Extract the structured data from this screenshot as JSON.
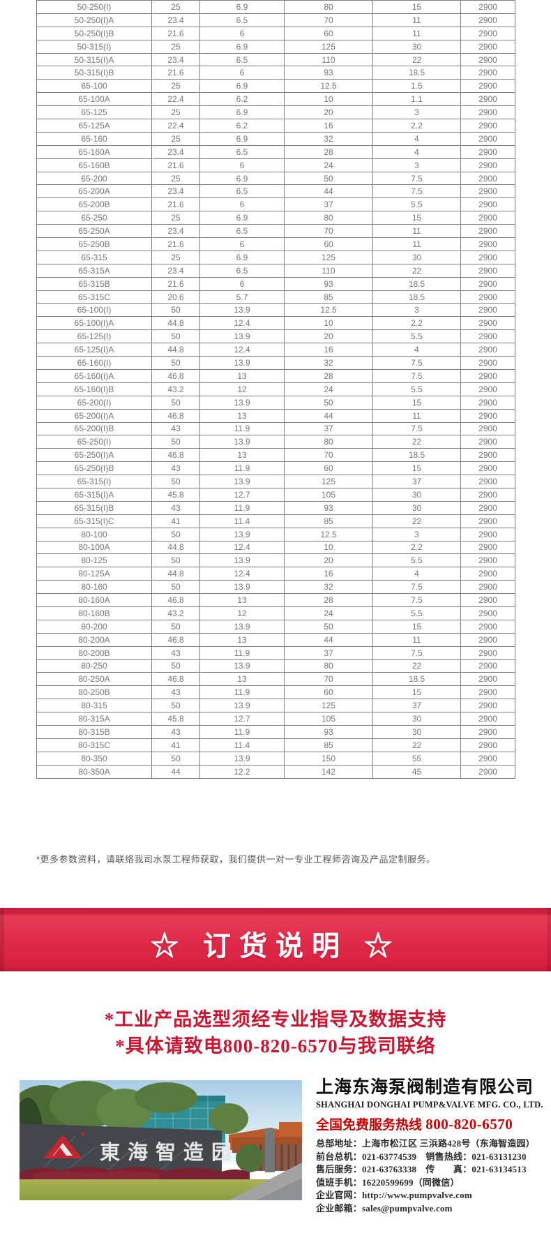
{
  "colors": {
    "banner_red": "#e12b4a",
    "notice_red": "#cc1430",
    "hotline_red": "#cc0000",
    "table_text_gray": "#777777",
    "table_border_gray": "#7f7f7f",
    "sign_wall_gray": "#43474b",
    "logo_red": "#c2272f"
  },
  "table": {
    "rows": [
      [
        "50-250(I)",
        "25",
        "6.9",
        "80",
        "15",
        "2900"
      ],
      [
        "50-250(I)A",
        "23.4",
        "6.5",
        "70",
        "11",
        "2900"
      ],
      [
        "50-250(I)B",
        "21.6",
        "6",
        "60",
        "11",
        "2900"
      ],
      [
        "50-315(I)",
        "25",
        "6.9",
        "125",
        "30",
        "2900"
      ],
      [
        "50-315(I)A",
        "23.4",
        "6.5",
        "110",
        "22",
        "2900"
      ],
      [
        "50-315(I)B",
        "21.6",
        "6",
        "93",
        "18.5",
        "2900"
      ],
      [
        "65-100",
        "25",
        "6.9",
        "12.5",
        "1.5",
        "2900"
      ],
      [
        "65-100A",
        "22.4",
        "6.2",
        "10",
        "1.1",
        "2900"
      ],
      [
        "65-125",
        "25",
        "6.9",
        "20",
        "3",
        "2900"
      ],
      [
        "65-125A",
        "22.4",
        "6.2",
        "16",
        "2.2",
        "2900"
      ],
      [
        "65-160",
        "25",
        "6.9",
        "32",
        "4",
        "2900"
      ],
      [
        "65-160A",
        "23.4",
        "6.5",
        "28",
        "4",
        "2900"
      ],
      [
        "65-160B",
        "21.6",
        "6",
        "24",
        "3",
        "2900"
      ],
      [
        "65-200",
        "25",
        "6.9",
        "50",
        "7.5",
        "2900"
      ],
      [
        "65-200A",
        "23.4",
        "6.5",
        "44",
        "7.5",
        "2900"
      ],
      [
        "65-200B",
        "21.6",
        "6",
        "37",
        "5.5",
        "2900"
      ],
      [
        "65-250",
        "25",
        "6.9",
        "80",
        "15",
        "2900"
      ],
      [
        "65-250A",
        "23.4",
        "6.5",
        "70",
        "11",
        "2900"
      ],
      [
        "65-250B",
        "21.6",
        "6",
        "60",
        "11",
        "2900"
      ],
      [
        "65-315",
        "25",
        "6.9",
        "125",
        "30",
        "2900"
      ],
      [
        "65-315A",
        "23.4",
        "6.5",
        "110",
        "22",
        "2900"
      ],
      [
        "65-315B",
        "21.6",
        "6",
        "93",
        "18.5",
        "2900"
      ],
      [
        "65-315C",
        "20.6",
        "5.7",
        "85",
        "18.5",
        "2900"
      ],
      [
        "65-100(I)",
        "50",
        "13.9",
        "12.5",
        "3",
        "2900"
      ],
      [
        "65-100(I)A",
        "44.8",
        "12.4",
        "10",
        "2.2",
        "2900"
      ],
      [
        "65-125(I)",
        "50",
        "13.9",
        "20",
        "5.5",
        "2900"
      ],
      [
        "65-125(I)A",
        "44.8",
        "12.4",
        "16",
        "4",
        "2900"
      ],
      [
        "65-160(I)",
        "50",
        "13.9",
        "32",
        "7.5",
        "2900"
      ],
      [
        "65-160(I)A",
        "46.8",
        "13",
        "28",
        "7.5",
        "2900"
      ],
      [
        "65-160(I)B",
        "43.2",
        "12",
        "24",
        "5.5",
        "2900"
      ],
      [
        "65-200(I)",
        "50",
        "13.9",
        "50",
        "15",
        "2900"
      ],
      [
        "65-200(I)A",
        "46.8",
        "13",
        "44",
        "11",
        "2900"
      ],
      [
        "65-200(I)B",
        "43",
        "11.9",
        "37",
        "7.5",
        "2900"
      ],
      [
        "65-250(I)",
        "50",
        "13.9",
        "80",
        "22",
        "2900"
      ],
      [
        "65-250(I)A",
        "46.8",
        "13",
        "70",
        "18.5",
        "2900"
      ],
      [
        "65-250(I)B",
        "43",
        "11.9",
        "60",
        "15",
        "2900"
      ],
      [
        "65-315(I)",
        "50",
        "13.9",
        "125",
        "37",
        "2900"
      ],
      [
        "65-315(I)A",
        "45.8",
        "12.7",
        "105",
        "30",
        "2900"
      ],
      [
        "65-315(I)B",
        "43",
        "11.9",
        "93",
        "30",
        "2900"
      ],
      [
        "65-315(I)C",
        "41",
        "11.4",
        "85",
        "22",
        "2900"
      ],
      [
        "80-100",
        "50",
        "13.9",
        "12.5",
        "3",
        "2900"
      ],
      [
        "80-100A",
        "44.8",
        "12.4",
        "10",
        "2.2",
        "2900"
      ],
      [
        "80-125",
        "50",
        "13.9",
        "20",
        "5.5",
        "2900"
      ],
      [
        "80-125A",
        "44.8",
        "12.4",
        "16",
        "4",
        "2900"
      ],
      [
        "80-160",
        "50",
        "13.9",
        "32",
        "7.5",
        "2900"
      ],
      [
        "80-160A",
        "46.8",
        "13",
        "28",
        "7.5",
        "2900"
      ],
      [
        "80-160B",
        "43.2",
        "12",
        "24",
        "5.5",
        "2900"
      ],
      [
        "80-200",
        "50",
        "13.9",
        "50",
        "15",
        "2900"
      ],
      [
        "80-200A",
        "46.8",
        "13",
        "44",
        "11",
        "2900"
      ],
      [
        "80-200B",
        "43",
        "11.9",
        "37",
        "7.5",
        "2900"
      ],
      [
        "80-250",
        "50",
        "13.9",
        "80",
        "22",
        "2900"
      ],
      [
        "80-250A",
        "46.8",
        "13",
        "70",
        "18.5",
        "2900"
      ],
      [
        "80-250B",
        "43",
        "11.9",
        "60",
        "15",
        "2900"
      ],
      [
        "80-315",
        "50",
        "13.9",
        "125",
        "37",
        "2900"
      ],
      [
        "80-315A",
        "45.8",
        "12.7",
        "105",
        "30",
        "2900"
      ],
      [
        "80-315B",
        "43",
        "11.9",
        "93",
        "30",
        "2900"
      ],
      [
        "80-315C",
        "41",
        "11.4",
        "85",
        "22",
        "2900"
      ],
      [
        "80-350",
        "50",
        "13.9",
        "150",
        "55",
        "2900"
      ],
      [
        "80-350A",
        "44",
        "12.2",
        "142",
        "45",
        "2900"
      ]
    ]
  },
  "note": "*更多参数资料，请联络我司水泵工程师获取，我们提供一对一专业工程师咨询及产品定制服务。",
  "banner": {
    "title": "☆ 订货说明 ☆"
  },
  "notice": {
    "lines": [
      "*工业产品选型须经专业指导及数据支持",
      "*具体请致电800-820-6570与我司联络"
    ]
  },
  "footer": {
    "photo": {
      "sign_text": "東海智造园",
      "logo": "red-triangle-logo"
    },
    "company_cn": "上海东海泵阀制造有限公司",
    "company_en": "SHANGHAI DONGHAI PUMP&VALVE MFG. CO., LTD.",
    "hotline_label": "全国免费服务热线",
    "hotline_number": "800-820-6570",
    "contact_lines": [
      "总部地址：上海市松江区 三浜路428号（东海智造园）",
      "前台总机：021-63774539　销售热线：021-63131230",
      "售后服务：021-63763338　传　　真：021-63134513",
      "值班手机：16220599699（同微信）",
      "企业官网：http://www.pumpvalve.com",
      "企业邮箱：sales@pumpvalve.com"
    ]
  }
}
